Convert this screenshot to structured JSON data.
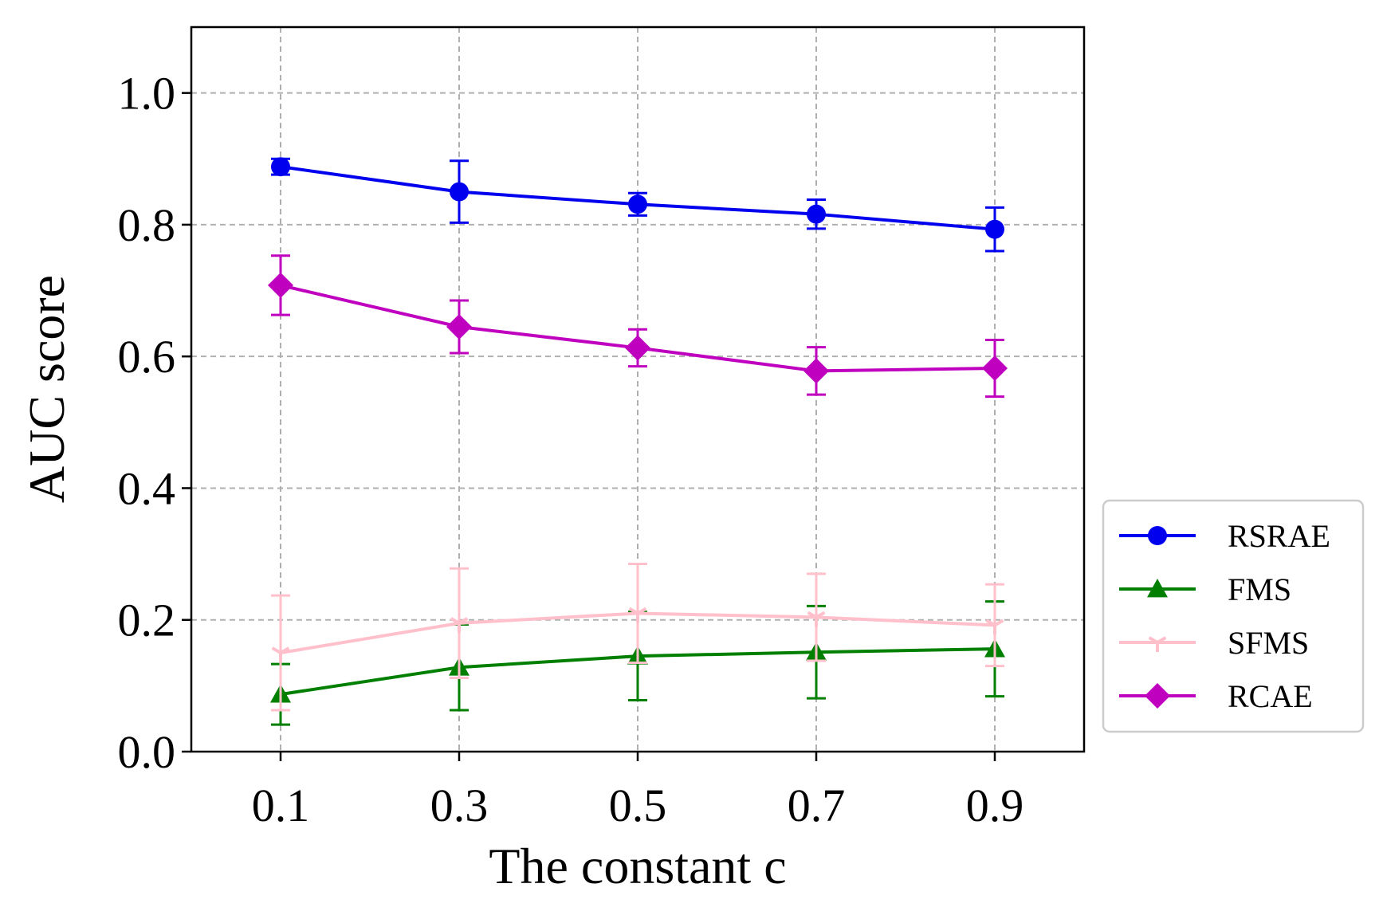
{
  "chart_data": {
    "type": "line",
    "title": "",
    "xlabel": "The constant c",
    "ylabel": "AUC score",
    "x": [
      0.1,
      0.3,
      0.5,
      0.7,
      0.9
    ],
    "x_tick_labels": [
      "0.1",
      "0.3",
      "0.5",
      "0.7",
      "0.9"
    ],
    "xlim": [
      0.0,
      1.0
    ],
    "ylim": [
      0.0,
      1.1
    ],
    "y_ticks": [
      0.0,
      0.2,
      0.4,
      0.6,
      0.8,
      1.0
    ],
    "y_tick_labels": [
      "0.0",
      "0.2",
      "0.4",
      "0.6",
      "0.8",
      "1.0"
    ],
    "grid": true,
    "legend_position": "outside-right-bottom",
    "series": [
      {
        "name": "RSRAE",
        "color": "#0000ee",
        "marker": "circle",
        "values": [
          0.888,
          0.85,
          0.831,
          0.816,
          0.793
        ],
        "errors": [
          0.012,
          0.047,
          0.017,
          0.022,
          0.033
        ]
      },
      {
        "name": "FMS",
        "color": "#007f00",
        "marker": "triangle-up",
        "values": [
          0.087,
          0.128,
          0.145,
          0.151,
          0.156
        ],
        "errors": [
          0.046,
          0.065,
          0.067,
          0.07,
          0.072
        ]
      },
      {
        "name": "SFMS",
        "color": "#ffc0cb",
        "marker": "tri-down",
        "values": [
          0.15,
          0.195,
          0.21,
          0.204,
          0.192
        ],
        "errors": [
          0.087,
          0.083,
          0.075,
          0.066,
          0.062
        ]
      },
      {
        "name": "RCAE",
        "color": "#bf00bf",
        "marker": "diamond",
        "values": [
          0.708,
          0.645,
          0.613,
          0.578,
          0.582
        ],
        "errors": [
          0.045,
          0.04,
          0.028,
          0.036,
          0.043
        ]
      }
    ]
  }
}
